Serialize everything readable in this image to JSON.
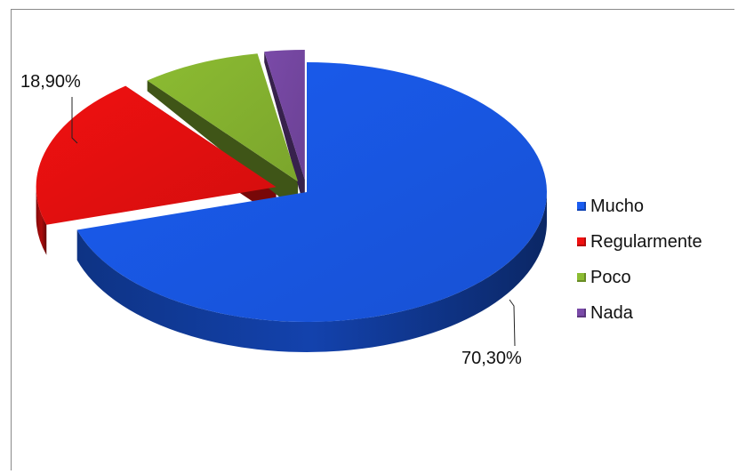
{
  "chart_data": {
    "type": "pie",
    "style": "3d-exploded",
    "slices": [
      {
        "name": "Mucho",
        "value": 70.3,
        "label": "70,30%",
        "color": "#1a5cf0"
      },
      {
        "name": "Regularmente",
        "value": 18.9,
        "label": "18,90%",
        "color": "#f01010"
      },
      {
        "name": "Poco",
        "value": 8.1,
        "label": "",
        "color": "#8cbc32"
      },
      {
        "name": "Nada",
        "value": 2.7,
        "label": "",
        "color": "#7a4aa8"
      }
    ],
    "legend": {
      "position": "right",
      "entries": [
        "Mucho",
        "Regularmente",
        "Poco",
        "Nada"
      ]
    }
  }
}
